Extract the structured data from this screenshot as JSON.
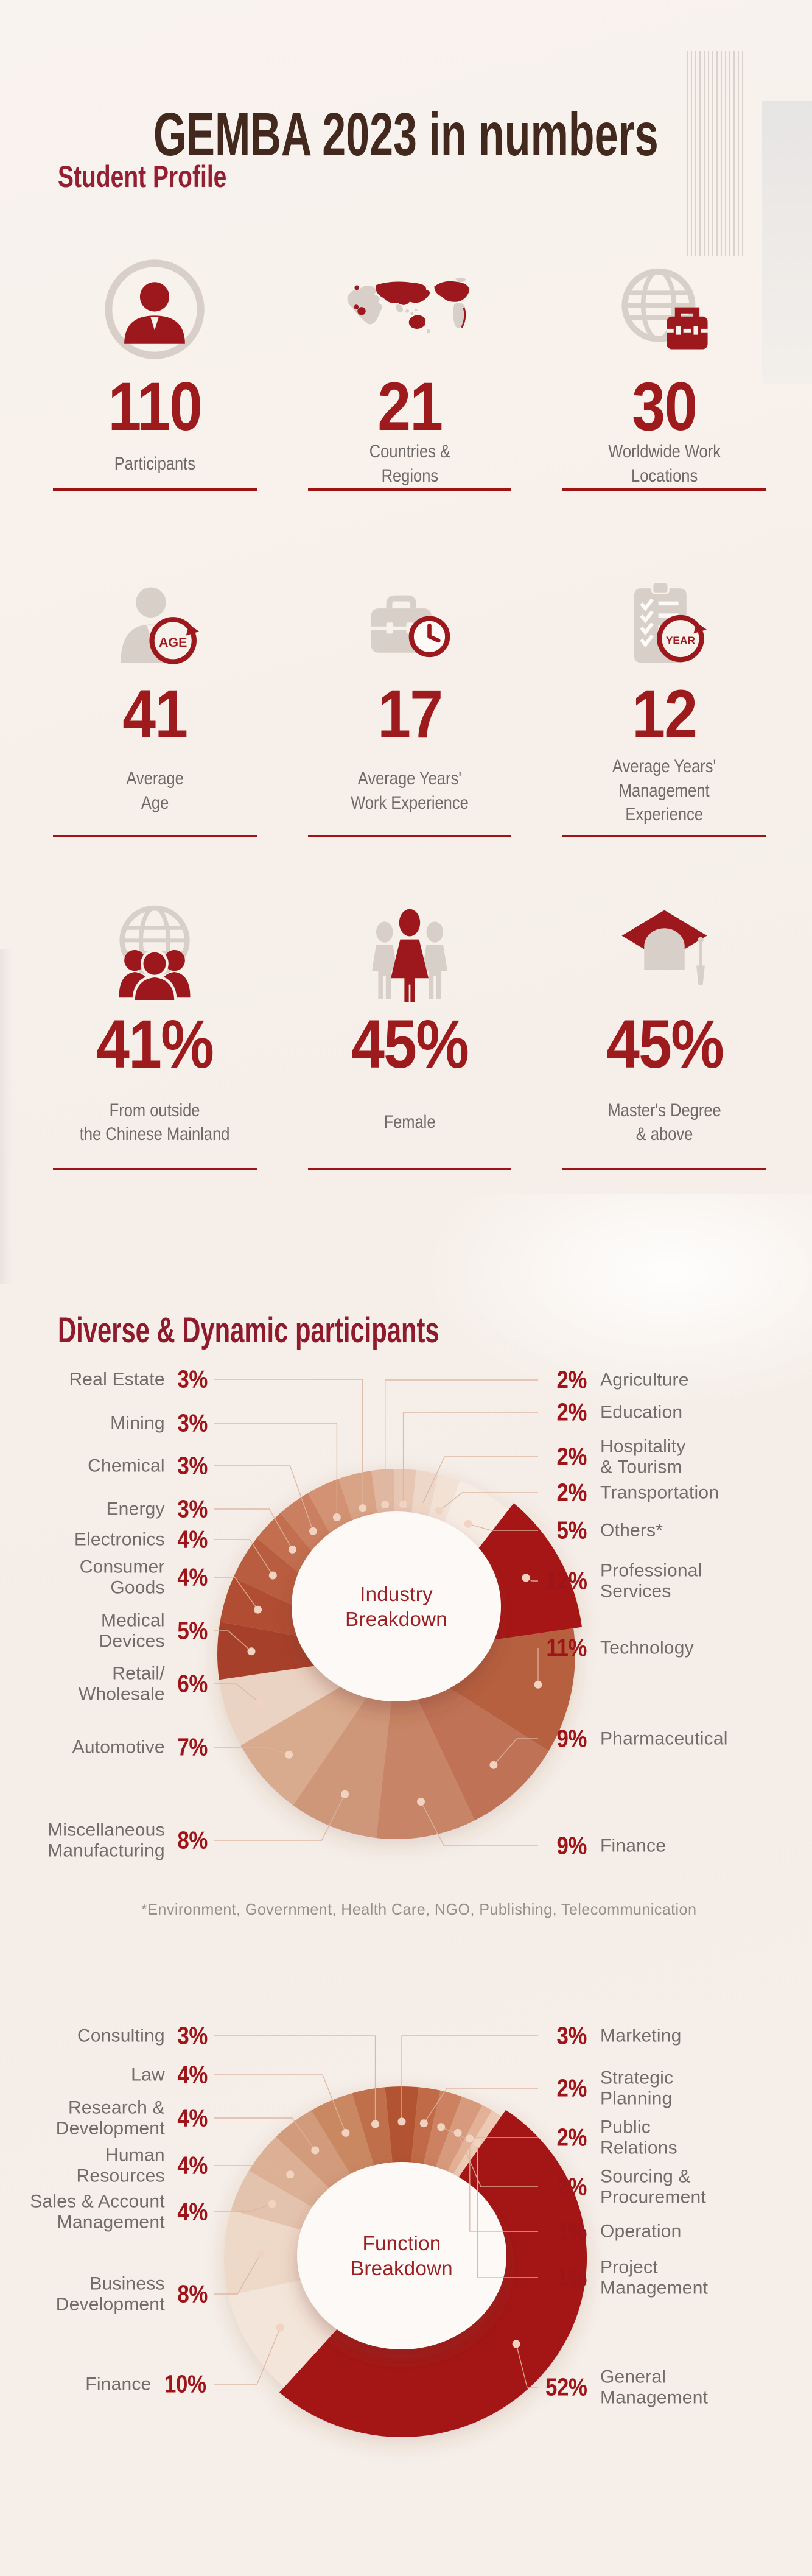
{
  "page": {
    "title": "GEMBA 2023 in numbers",
    "student_profile_heading": "Student Profile",
    "diverse_heading": "Diverse & Dynamic participants",
    "footnote": "*Environment, Government, Health Care, NGO, Publishing, Telecommunication"
  },
  "colors": {
    "accent_red": "#9e1414",
    "number_red": "#9d1a1d",
    "heading_crimson": "#941f33",
    "title_brown": "#43291d",
    "label_gray": "#6e6b69",
    "icon_gray": "#d8cfc8",
    "icon_red": "#9c181d",
    "background": "#f6efe9"
  },
  "stats": [
    {
      "icon": "participants-icon",
      "value": "110",
      "label": "Participants"
    },
    {
      "icon": "world-map-icon",
      "value": "21",
      "label": "Countries &\nRegions"
    },
    {
      "icon": "globe-briefcase-icon",
      "value": "30",
      "label": "Worldwide Work\nLocations"
    },
    {
      "icon": "age-icon",
      "badge": "AGE",
      "value": "41",
      "label": "Average\nAge"
    },
    {
      "icon": "briefcase-clock-icon",
      "value": "17",
      "label": "Average Years'\nWork Experience"
    },
    {
      "icon": "clipboard-year-icon",
      "badge": "YEAR",
      "value": "12",
      "label": "Average Years'\nManagement\nExperience"
    },
    {
      "icon": "globe-people-icon",
      "value": "41%",
      "label": "From outside\nthe Chinese Mainland"
    },
    {
      "icon": "female-icon",
      "value": "45%",
      "label": "Female"
    },
    {
      "icon": "graduation-cap-icon",
      "value": "45%",
      "label": "Master's Degree\n& above"
    }
  ],
  "chart_data": [
    {
      "type": "pie",
      "subtype": "donut",
      "title": "Industry\nBreakdown",
      "unit": "%",
      "legend_position": "callout-labels-both-sides",
      "slices": [
        {
          "label": "Agriculture",
          "value": 2,
          "color": "#e0b7a0"
        },
        {
          "label": "Education",
          "value": 2,
          "color": "#e7c6b4"
        },
        {
          "label": "Hospitality\n& Tourism",
          "value": 2,
          "color": "#edd7c9"
        },
        {
          "label": "Transportation",
          "value": 2,
          "color": "#f2e1d5"
        },
        {
          "label": "Others*",
          "value": 5,
          "color": "#f6ece4"
        },
        {
          "label": "Professional\nServices",
          "value": 12,
          "color": "#a61713"
        },
        {
          "label": "Technology",
          "value": 11,
          "color": "#b6613f"
        },
        {
          "label": "Pharmaceutical",
          "value": 9,
          "color": "#bf7254"
        },
        {
          "label": "Finance",
          "value": 9,
          "color": "#c78466"
        },
        {
          "label": "Miscellaneous\nManufacturing",
          "value": 8,
          "color": "#cf977a"
        },
        {
          "label": "Automotive",
          "value": 7,
          "color": "#d8aa8e"
        },
        {
          "label": "Retail/\nWholesale",
          "value": 6,
          "color": "#ebd3c3"
        },
        {
          "label": "Medical\nDevices",
          "value": 5,
          "color": "#a7402a"
        },
        {
          "label": "Consumer\nGoods",
          "value": 4,
          "color": "#b04e31"
        },
        {
          "label": "Electronics",
          "value": 4,
          "color": "#b95d3f"
        },
        {
          "label": "Energy",
          "value": 3,
          "color": "#c26e4f"
        },
        {
          "label": "Chemical",
          "value": 3,
          "color": "#ca8061"
        },
        {
          "label": "Mining",
          "value": 3,
          "color": "#d29273"
        },
        {
          "label": "Real Estate",
          "value": 3,
          "color": "#d9a385"
        }
      ]
    },
    {
      "type": "pie",
      "subtype": "donut",
      "title": "Function\nBreakdown",
      "unit": "%",
      "legend_position": "callout-labels-both-sides",
      "slices": [
        {
          "label": "Marketing",
          "value": 3,
          "color": "#b25330"
        },
        {
          "label": "Strategic\nPlanning",
          "value": 2,
          "color": "#c06a46"
        },
        {
          "label": "Public\nRelations",
          "value": 2,
          "color": "#cc8161"
        },
        {
          "label": "Sourcing &\nProcurement",
          "value": 2,
          "color": "#d89a7c"
        },
        {
          "label": "Operation",
          "value": 1,
          "color": "#e2b196"
        },
        {
          "label": "Project\nManagement",
          "value": 1,
          "color": "#eccab5"
        },
        {
          "label": "General\nManagement",
          "value": 52,
          "color": "#a41414"
        },
        {
          "label": "Finance",
          "value": 10,
          "color": "#f3e5da"
        },
        {
          "label": "Business\nDevelopment",
          "value": 8,
          "color": "#eed9c9"
        },
        {
          "label": "Sales & Account\nManagement",
          "value": 4,
          "color": "#e4c3ae"
        },
        {
          "label": "Human\nResources",
          "value": 4,
          "color": "#dbb094"
        },
        {
          "label": "Research &\nDevelopment",
          "value": 4,
          "color": "#d29b7b"
        },
        {
          "label": "Law",
          "value": 4,
          "color": "#c98862"
        },
        {
          "label": "Consulting",
          "value": 3,
          "color": "#bf6f4b"
        }
      ]
    }
  ]
}
